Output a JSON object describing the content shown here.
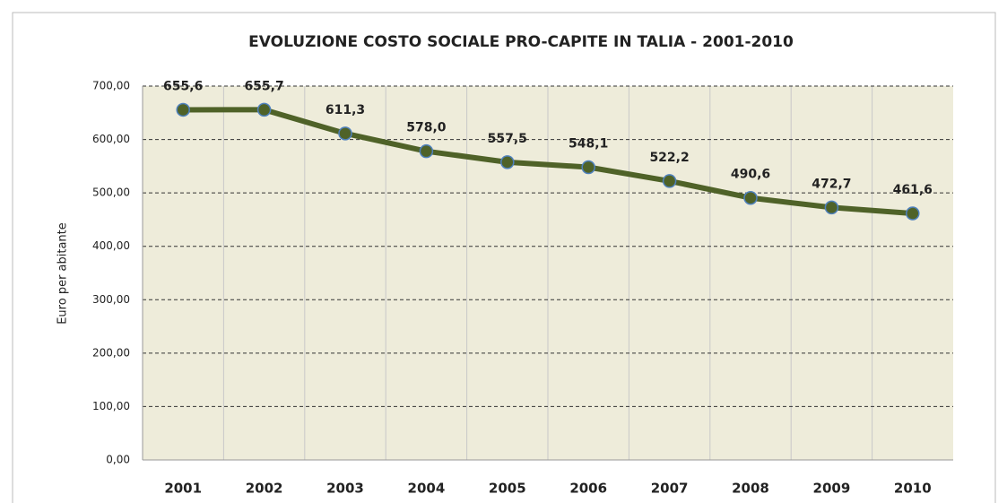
{
  "chart_data": {
    "type": "line",
    "title": "EVOLUZIONE COSTO SOCIALE PRO-CAPITE IN TALIA - 2001-2010",
    "y_label": "Euro per abitante",
    "categories": [
      "2001",
      "2002",
      "2003",
      "2004",
      "2005",
      "2006",
      "2007",
      "2008",
      "2009",
      "2010"
    ],
    "series": [
      {
        "name": "Costo sociale pro-capite",
        "color": "#4f6228",
        "values": [
          655.6,
          655.7,
          611.3,
          578.0,
          557.5,
          548.1,
          522.2,
          490.6,
          472.7,
          461.6
        ],
        "value_labels": [
          "655,6",
          "655,7",
          "611,3",
          "578,0",
          "557,5",
          "548,1",
          "522,2",
          "490,6",
          "472,7",
          "461,6"
        ]
      }
    ],
    "ylim": [
      0,
      700
    ],
    "yticks": [
      {
        "value": 0,
        "label": "0,00"
      },
      {
        "value": 100,
        "label": "100,00"
      },
      {
        "value": 200,
        "label": "200,00"
      },
      {
        "value": 300,
        "label": "300,00"
      },
      {
        "value": 400,
        "label": "400,00"
      },
      {
        "value": 500,
        "label": "500,00"
      },
      {
        "value": 600,
        "label": "600,00"
      },
      {
        "value": 700,
        "label": "700,00"
      }
    ],
    "grid": true
  }
}
